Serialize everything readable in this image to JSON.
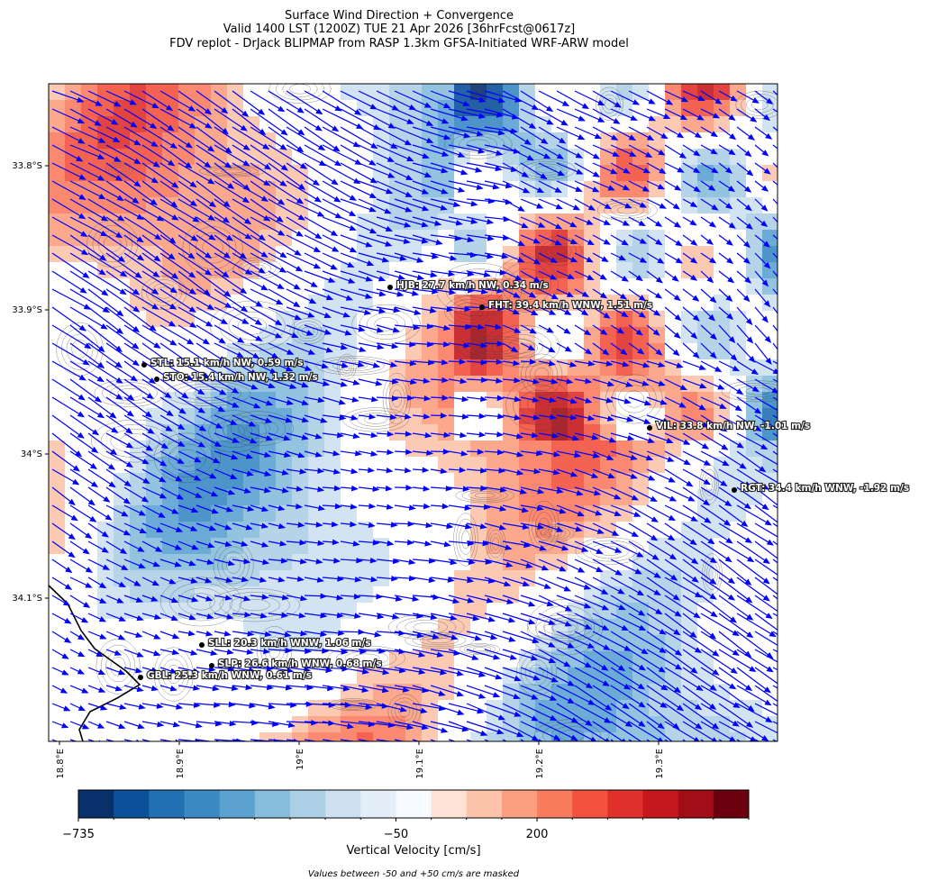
{
  "header": {
    "title_lines": [
      "Surface Wind Direction + Convergence",
      "Valid 1400 LST (1200Z) TUE 21 Apr 2026 [36hrFcst@0617z]",
      "FDV replot - DrJack BLIPMAP from RASP 1.3km GFSA-Initiated WRF-ARW model"
    ]
  },
  "map": {
    "lat_ticks": [
      "33.8°S",
      "33.9°S",
      "34°S",
      "34.1°S"
    ],
    "lon_ticks": [
      "18.8°E",
      "18.9°E",
      "19°E",
      "19.1°E",
      "19.2°E",
      "19.3°E"
    ],
    "stations": [
      {
        "label": "HJB: 27.7 km/h NW, 0.34 m/s"
      },
      {
        "label": "FHT: 39.4 km/h WNW, 1.51 m/s"
      },
      {
        "label": "STL: 15.1 km/h NW, 0.59 m/s"
      },
      {
        "label": "STO: 15.4 km/h NW, 1.32 m/s"
      },
      {
        "label": "VIL: 33.8 km/h NW, -1.01 m/s"
      },
      {
        "label": "RGT: 34.4 km/h WNW, -1.92 m/s"
      },
      {
        "label": "SLL: 20.3 km/h WNW, 1.06 m/s"
      },
      {
        "label": "SLP: 26.6 km/h WNW, 0.68 m/s"
      },
      {
        "label": "GBL: 25.3 km/h WNW, 0.61 m/s"
      }
    ]
  },
  "colorbar": {
    "colors": [
      "#08306b",
      "#0b509a",
      "#2170b4",
      "#3a89c2",
      "#5ba2d0",
      "#86bcdc",
      "#adcfe5",
      "#cde0f0",
      "#e4eef8",
      "#f7fbff",
      "#fee2d6",
      "#fcc3ab",
      "#fc9e80",
      "#f97c5f",
      "#f3523f",
      "#e0302b",
      "#c4181d",
      "#a10e17",
      "#6c000f"
    ],
    "ticks": [
      {
        "value": -735,
        "label": "−735"
      },
      {
        "value": -50,
        "label": "−50"
      },
      200
    ],
    "label": "Vertical Velocity [cm/s]",
    "note": "Values between -50 and +50 cm/s are masked"
  }
}
